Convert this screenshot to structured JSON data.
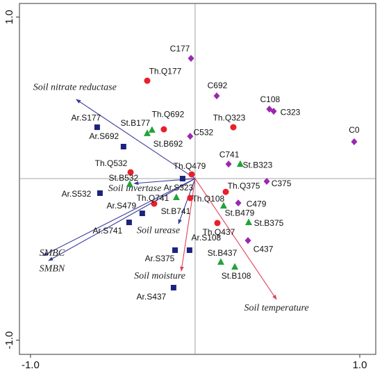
{
  "chart_data": {
    "type": "scatter",
    "xlim": [
      -1.067,
      1.097
    ],
    "ylim": [
      -1.088,
      1.084
    ],
    "xticks": [
      {
        "value": -1,
        "label": "-1.0"
      },
      {
        "value": 1,
        "label": "1.0"
      }
    ],
    "yticks": [
      {
        "value": -1,
        "label": "-1.0"
      },
      {
        "value": 1,
        "label": "1.0"
      }
    ],
    "series": [
      {
        "marker": "diamond",
        "color": "#9b27af",
        "labels": [
          "C177",
          "C692",
          "C108",
          "C323",
          "C0",
          "C532",
          "C741",
          "C375",
          "C479",
          "C437"
        ],
        "x": [
          -0.025,
          0.131,
          0.451,
          0.477,
          0.966,
          -0.03,
          0.203,
          0.435,
          0.262,
          0.321
        ],
        "values": [
          0.744,
          0.512,
          0.43,
          0.417,
          0.228,
          0.262,
          0.09,
          -0.017,
          -0.151,
          -0.383
        ]
      },
      {
        "marker": "circle",
        "color": "#e8202a",
        "labels": [
          "Th.Q177",
          "Th.Q692",
          "Th.Q323",
          "Th.Q479",
          "Th.Q532",
          "Th.Q375",
          "Th.Q741",
          "Th.Q108",
          "Th.Q437"
        ],
        "x": [
          -0.291,
          -0.19,
          0.232,
          -0.021,
          -0.392,
          0.186,
          -0.249,
          -0.03,
          0.135
        ],
        "values": [
          0.606,
          0.305,
          0.318,
          0.026,
          0.039,
          -0.082,
          -0.155,
          -0.12,
          -0.275
        ]
      },
      {
        "marker": "triangle",
        "color": "#22a33a",
        "labels": [
          "St.B177",
          "St.B692",
          "St.B323",
          "St.B532",
          "St.B741",
          "St.B479",
          "St.B375",
          "St.B437",
          "St.B108"
        ],
        "x": [
          -0.262,
          -0.291,
          0.274,
          -0.397,
          -0.114,
          0.173,
          0.325,
          0.156,
          0.241
        ],
        "values": [
          0.301,
          0.28,
          0.09,
          -0.034,
          -0.116,
          -0.168,
          -0.271,
          -0.516,
          -0.546
        ]
      },
      {
        "marker": "square",
        "color": "#1a237e",
        "labels": [
          "Ar.S177",
          "Ar.S692",
          "Ar.S323",
          "Ar.S532",
          "Ar.S479",
          "Ar.S741",
          "Ar.S108",
          "Ar.S375",
          "Ar.S437"
        ],
        "x": [
          -0.595,
          -0.435,
          -0.076,
          -0.578,
          -0.321,
          -0.401,
          -0.034,
          -0.122,
          -0.131
        ],
        "values": [
          0.318,
          0.198,
          0,
          -0.09,
          -0.215,
          -0.271,
          -0.443,
          -0.443,
          -0.675
        ]
      }
    ],
    "vectors": [
      {
        "label": "Soil nitrate reductase",
        "x": -0.722,
        "y": 0.49,
        "color": "#3a3a9a"
      },
      {
        "label": "Soil invertase",
        "x": -0.371,
        "y": -0.03,
        "color": "#3a3a9a"
      },
      {
        "label": "Soil urease",
        "x": -0.101,
        "y": -0.28,
        "color": "#3a3a9a"
      },
      {
        "label": "SMBC",
        "x": -0.924,
        "y": -0.477,
        "color": "#3a3a9a"
      },
      {
        "label": "SMBN",
        "x": -0.89,
        "y": -0.508,
        "color": "#3a3a9a"
      },
      {
        "label": "Soil moisture",
        "x": -0.084,
        "y": -0.572,
        "color": "#e0405a"
      },
      {
        "label": "Soil temperature",
        "x": 0.494,
        "y": -0.748,
        "color": "#e0405a"
      }
    ]
  }
}
